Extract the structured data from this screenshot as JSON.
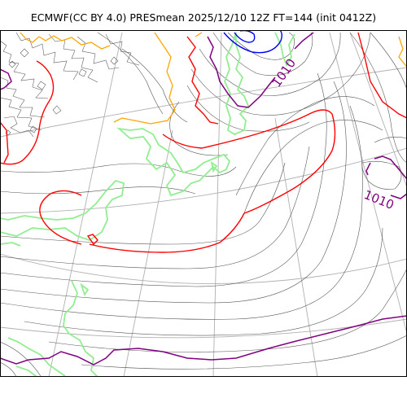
{
  "title": "ECMWF(CC BY 4.0) PRESmean 2025/12/10 12Z FT=144 (init 0412Z)",
  "colors": {
    "graticule": "#b0b0b0",
    "coastline": "#90ee90",
    "isobar_default": "#555555",
    "isobar_1010": "#800080",
    "isobar_1020": "#ff0000",
    "isobar_1000": "#ffa500",
    "isobar_low": "#0000ff"
  },
  "labels": {
    "iso_1010_north": "1010",
    "iso_1010_east": "1010"
  }
}
